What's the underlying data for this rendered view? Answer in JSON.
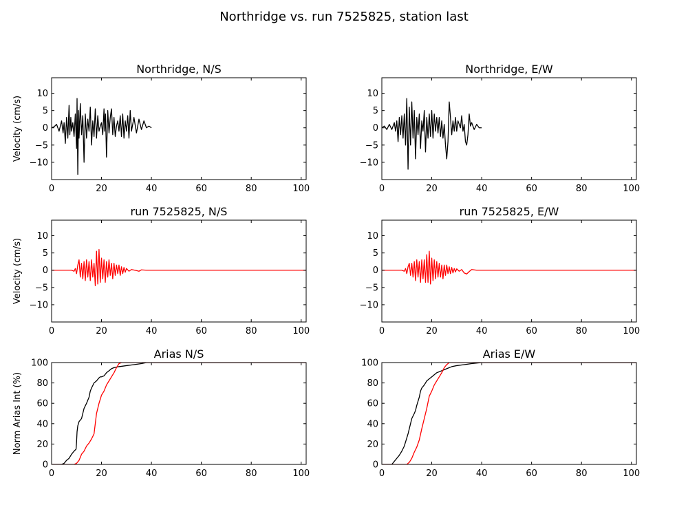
{
  "figure": {
    "suptitle": "Northridge vs. run 7525825, station last",
    "colors": {
      "recorded": "#000000",
      "simulated": "#ff0000"
    }
  },
  "chart_data": [
    {
      "type": "line",
      "title": "Northridge, N/S",
      "xlabel": "",
      "ylabel": "Velocity (cm/s)",
      "xlim": [
        0,
        102
      ],
      "ylim": [
        -15,
        14.5
      ],
      "xticks": [
        0,
        20,
        40,
        60,
        80,
        100
      ],
      "yticks": [
        -10,
        -5,
        0,
        5,
        10
      ],
      "grid": false,
      "series": [
        {
          "color": "#000000",
          "x": [
            0,
            1,
            2,
            3,
            4,
            4.6,
            5,
            5.5,
            6,
            6.5,
            7,
            7.3,
            7.7,
            8,
            8.5,
            9,
            9.5,
            10,
            10.2,
            10.5,
            10.8,
            11,
            11.5,
            12,
            12.5,
            13,
            13.5,
            14,
            14.5,
            15,
            15.5,
            16,
            16.5,
            17,
            17.5,
            18,
            18.5,
            19,
            19.5,
            20,
            20.5,
            21,
            21.3,
            21.6,
            22,
            22.5,
            23,
            23.5,
            24,
            24.5,
            25,
            25.5,
            26,
            26.5,
            27,
            27.5,
            28,
            28.5,
            29,
            29.5,
            30,
            30.5,
            31,
            31.5,
            32,
            33,
            34,
            35,
            36,
            37,
            38,
            39,
            40
          ],
          "y": [
            0,
            0.3,
            1,
            -1,
            2,
            -1.5,
            1.5,
            -4.5,
            3,
            -3,
            6.5,
            -2,
            3,
            -1,
            1.5,
            -2.5,
            4,
            -6,
            8.5,
            -13.5,
            5,
            -3,
            7,
            -2,
            3.5,
            -10,
            4,
            -3,
            2.5,
            -1,
            6,
            -5,
            2,
            -2.5,
            5.5,
            -3,
            3.5,
            -1,
            0.5,
            1.5,
            -2,
            5.5,
            -1,
            4,
            -8.5,
            5,
            -1.5,
            3,
            5.5,
            -2,
            3,
            -2.5,
            0.5,
            2,
            -1,
            3.5,
            -2.5,
            4,
            -3,
            2,
            -1,
            3.5,
            -3,
            5,
            -1,
            3,
            -1.5,
            2.5,
            -0.5,
            2,
            0,
            0.5,
            0
          ]
        }
      ]
    },
    {
      "type": "line",
      "title": "Northridge, E/W",
      "xlabel": "",
      "ylabel": "",
      "xlim": [
        0,
        102
      ],
      "ylim": [
        -15,
        14.5
      ],
      "xticks": [
        0,
        20,
        40,
        60,
        80,
        100
      ],
      "yticks": [
        -10,
        -5,
        0,
        5,
        10
      ],
      "grid": false,
      "series": [
        {
          "color": "#000000",
          "x": [
            0,
            1,
            2,
            3,
            4,
            5,
            5.5,
            6,
            6.5,
            7,
            7.5,
            8,
            8.5,
            9,
            9.5,
            10,
            10.5,
            11,
            11.5,
            12,
            12.5,
            13,
            13.5,
            14,
            14.5,
            15,
            15.5,
            16,
            16.5,
            17,
            17.5,
            18,
            18.5,
            19,
            19.5,
            20,
            20.5,
            21,
            21.5,
            22,
            22.5,
            23,
            23.5,
            24,
            24.5,
            25,
            25.5,
            26,
            26.5,
            27,
            27.5,
            28,
            28.5,
            29,
            29.5,
            30,
            30.5,
            31,
            31.5,
            32,
            32.5,
            33,
            33.5,
            34,
            34.5,
            35,
            35.5,
            36,
            37,
            38,
            39,
            40
          ],
          "y": [
            0,
            0.5,
            -0.5,
            1,
            -0.5,
            1.5,
            -1,
            2,
            -4,
            3,
            -2,
            3.5,
            -3,
            4,
            -5,
            8.5,
            -12,
            6,
            -5,
            7.5,
            -3,
            5,
            -9,
            3,
            -2,
            4,
            -6,
            2,
            -1,
            5,
            -7,
            3,
            -3,
            4,
            -2.5,
            5,
            -3,
            4,
            -1,
            3,
            -1.5,
            3,
            -2.5,
            2,
            -3,
            1,
            -5,
            -9,
            -4,
            7.5,
            3,
            -2,
            2,
            -1,
            3,
            -1,
            2,
            1,
            0,
            3.5,
            -1,
            1,
            -4,
            -5,
            -2,
            4,
            0.5,
            1.5,
            -0.5,
            1,
            0,
            0
          ]
        }
      ]
    },
    {
      "type": "line",
      "title": "run 7525825, N/S",
      "xlabel": "",
      "ylabel": "Velocity (cm/s)",
      "xlim": [
        0,
        102
      ],
      "ylim": [
        -15,
        14.5
      ],
      "xticks": [
        0,
        20,
        40,
        60,
        80,
        100
      ],
      "yticks": [
        -10,
        -5,
        0,
        5,
        10
      ],
      "grid": false,
      "series": [
        {
          "color": "#ff0000",
          "x": [
            0,
            8,
            9,
            9.5,
            10,
            10.5,
            11,
            11.5,
            12,
            12.5,
            13,
            13.5,
            14,
            14.5,
            15,
            15.5,
            16,
            16.5,
            17,
            17.5,
            18,
            18.5,
            19,
            19.5,
            20,
            20.5,
            21,
            21.5,
            22,
            22.5,
            23,
            23.5,
            24,
            24.5,
            25,
            25.5,
            26,
            26.5,
            27,
            27.5,
            28,
            28.5,
            29,
            29.5,
            30,
            31,
            32,
            34,
            35,
            36,
            38,
            40,
            60,
            80,
            102
          ],
          "y": [
            0,
            0,
            -0.3,
            0.5,
            -1,
            1.5,
            3,
            -2,
            2,
            -2.5,
            2.5,
            -3,
            3,
            -2,
            2.5,
            -3,
            3,
            -2,
            2,
            -4.5,
            5.5,
            -4,
            6,
            -3.5,
            3.5,
            -2.5,
            3,
            -3.5,
            2.5,
            -2,
            3,
            -1.5,
            2,
            -2.5,
            2,
            -1.5,
            1.5,
            -1,
            1.5,
            -1.5,
            1,
            -1,
            0.8,
            -0.6,
            0.5,
            -0.3,
            0.2,
            -0.1,
            -0.3,
            0.1,
            0,
            0,
            0,
            0,
            0
          ]
        }
      ]
    },
    {
      "type": "line",
      "title": "run 7525825, E/W",
      "xlabel": "",
      "ylabel": "",
      "xlim": [
        0,
        102
      ],
      "ylim": [
        -15,
        14.5
      ],
      "xticks": [
        0,
        20,
        40,
        60,
        80,
        100
      ],
      "yticks": [
        -10,
        -5,
        0,
        5,
        10
      ],
      "grid": false,
      "series": [
        {
          "color": "#ff0000",
          "x": [
            0,
            8,
            9,
            9.5,
            10,
            10.5,
            11,
            11.5,
            12,
            12.5,
            13,
            13.5,
            14,
            14.5,
            15,
            15.5,
            16,
            16.5,
            17,
            17.5,
            18,
            18.5,
            19,
            19.5,
            20,
            20.5,
            21,
            21.5,
            22,
            22.5,
            23,
            23.5,
            24,
            24.5,
            25,
            25.5,
            26,
            26.5,
            27,
            27.5,
            28,
            28.5,
            29,
            29.5,
            30,
            31,
            32,
            33,
            34,
            35,
            36,
            38,
            40,
            60,
            80,
            102
          ],
          "y": [
            0,
            0,
            -0.3,
            0.5,
            -1,
            1,
            2,
            -1.5,
            2,
            -2,
            2.5,
            -3,
            3,
            -2,
            2.5,
            -3.5,
            3,
            -2.5,
            3,
            -3.5,
            4.5,
            -3.5,
            5.5,
            -4,
            3.5,
            -3,
            3,
            -2.5,
            2.5,
            -2,
            2,
            -2,
            1.5,
            -2.5,
            1.5,
            -1.5,
            1.5,
            -1,
            1,
            -1,
            0.8,
            -0.8,
            0.5,
            -0.5,
            0.4,
            -0.3,
            0.2,
            -0.8,
            -1.1,
            -0.4,
            0.2,
            0,
            0,
            0,
            0,
            0
          ]
        }
      ]
    },
    {
      "type": "line",
      "title": "Arias N/S",
      "xlabel": "",
      "ylabel": "Norm Arias Int (%)",
      "xlim": [
        0,
        102
      ],
      "ylim": [
        0,
        100
      ],
      "xticks": [
        0,
        20,
        40,
        60,
        80,
        100
      ],
      "yticks": [
        0,
        20,
        40,
        60,
        80,
        100
      ],
      "grid": false,
      "series": [
        {
          "color": "#000000",
          "x": [
            0,
            4,
            5,
            6,
            7,
            8,
            9,
            9.8,
            10,
            10.2,
            10.5,
            11,
            12,
            12.5,
            13,
            14,
            14.5,
            15,
            15.5,
            16,
            17,
            17.5,
            18,
            19,
            19.5,
            20,
            21,
            22,
            23,
            24,
            25,
            27,
            30,
            33,
            36,
            38,
            40,
            102
          ],
          "y": [
            0,
            0,
            1,
            4,
            6,
            10,
            13,
            15,
            22,
            32,
            38,
            42,
            45,
            50,
            55,
            60,
            63,
            66,
            72,
            75,
            80,
            81,
            82,
            85,
            86,
            86,
            87,
            90,
            92,
            94,
            95,
            96,
            97,
            98,
            99,
            100,
            100,
            100
          ]
        },
        {
          "color": "#ff0000",
          "x": [
            0,
            9,
            10,
            11,
            12,
            13,
            14,
            15,
            16,
            17,
            17.5,
            18,
            18.5,
            19,
            20,
            21,
            22,
            23,
            24,
            25,
            26,
            26.5,
            27,
            28,
            102
          ],
          "y": [
            0,
            0,
            1,
            4,
            10,
            13,
            18,
            21,
            25,
            30,
            40,
            50,
            55,
            60,
            68,
            72,
            78,
            82,
            86,
            90,
            95,
            97,
            99,
            100,
            100
          ]
        }
      ]
    },
    {
      "type": "line",
      "title": "Arias E/W",
      "xlabel": "",
      "ylabel": "",
      "xlim": [
        0,
        102
      ],
      "ylim": [
        0,
        100
      ],
      "xticks": [
        0,
        20,
        40,
        60,
        80,
        100
      ],
      "yticks": [
        0,
        20,
        40,
        60,
        80,
        100
      ],
      "grid": false,
      "series": [
        {
          "color": "#000000",
          "x": [
            0,
            4,
            5,
            6,
            7,
            8,
            9,
            10,
            10.5,
            11,
            12,
            13,
            13.5,
            14,
            14.5,
            15,
            15.5,
            16,
            17,
            18,
            19,
            20,
            21,
            22,
            24,
            26,
            28,
            30,
            33,
            36,
            40,
            102
          ],
          "y": [
            0,
            0,
            3,
            6,
            9,
            13,
            18,
            26,
            30,
            35,
            45,
            50,
            53,
            58,
            62,
            66,
            72,
            75,
            78,
            82,
            84,
            86,
            88,
            90,
            92,
            94,
            96,
            97,
            98,
            99,
            100,
            100
          ]
        },
        {
          "color": "#ff0000",
          "x": [
            0,
            10,
            11,
            12,
            13,
            14,
            15,
            16,
            17,
            18,
            19,
            20,
            21,
            22,
            23,
            24,
            25,
            26,
            27,
            28,
            102
          ],
          "y": [
            0,
            0,
            2,
            6,
            12,
            17,
            24,
            35,
            45,
            55,
            67,
            72,
            78,
            82,
            86,
            90,
            95,
            98,
            100,
            100,
            100
          ]
        }
      ]
    }
  ]
}
